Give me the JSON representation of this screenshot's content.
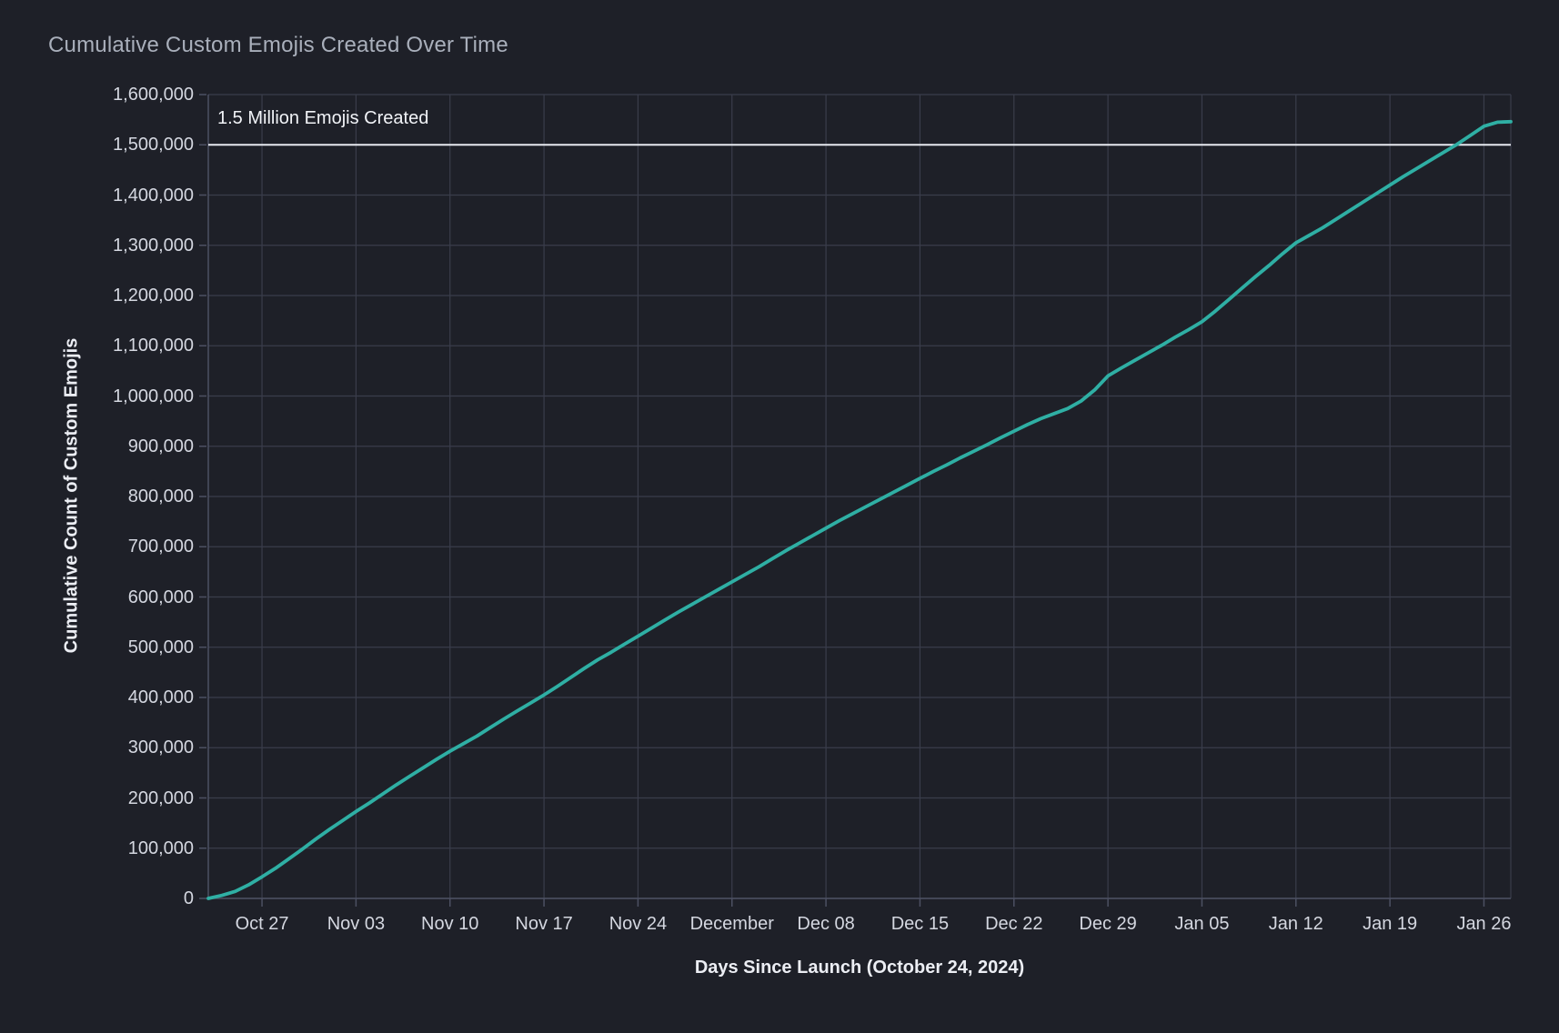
{
  "colors": {
    "background": "#1e2028",
    "grid": "#3a3d4b",
    "axis": "#4c5062",
    "line": "#2fafa4",
    "reference_line": "#e7e9ef",
    "title_text": "#a9afbb",
    "tick_text": "#d4d7e0",
    "axis_title_text": "#eceef4",
    "annotation_text": "#f1f3f7"
  },
  "chart_data": {
    "type": "line",
    "title": "Cumulative Custom Emojis Created Over Time",
    "xlabel": "Days Since Launch (October 24, 2024)",
    "ylabel": "Cumulative Count of Custom Emojis",
    "ylim": [
      0,
      1600000
    ],
    "grid": true,
    "legend": "none",
    "y_ticks": [
      {
        "value": 0,
        "label": "0"
      },
      {
        "value": 100000,
        "label": "100,000"
      },
      {
        "value": 200000,
        "label": "200,000"
      },
      {
        "value": 300000,
        "label": "300,000"
      },
      {
        "value": 400000,
        "label": "400,000"
      },
      {
        "value": 500000,
        "label": "500,000"
      },
      {
        "value": 600000,
        "label": "600,000"
      },
      {
        "value": 700000,
        "label": "700,000"
      },
      {
        "value": 800000,
        "label": "800,000"
      },
      {
        "value": 900000,
        "label": "900,000"
      },
      {
        "value": 1000000,
        "label": "1,000,000"
      },
      {
        "value": 1100000,
        "label": "1,100,000"
      },
      {
        "value": 1200000,
        "label": "1,200,000"
      },
      {
        "value": 1300000,
        "label": "1,300,000"
      },
      {
        "value": 1400000,
        "label": "1,400,000"
      },
      {
        "value": 1500000,
        "label": "1,500,000"
      },
      {
        "value": 1600000,
        "label": "1,600,000"
      }
    ],
    "x_ticks": [
      {
        "day": 3,
        "label": "Oct 27"
      },
      {
        "day": 10,
        "label": "Nov 03"
      },
      {
        "day": 17,
        "label": "Nov 10"
      },
      {
        "day": 24,
        "label": "Nov 17"
      },
      {
        "day": 31,
        "label": "Nov 24"
      },
      {
        "day": 38,
        "label": "December"
      },
      {
        "day": 45,
        "label": "Dec 08"
      },
      {
        "day": 52,
        "label": "Dec 15"
      },
      {
        "day": 59,
        "label": "Dec 22"
      },
      {
        "day": 66,
        "label": "Dec 29"
      },
      {
        "day": 73,
        "label": "Jan 05"
      },
      {
        "day": 80,
        "label": "Jan 12"
      },
      {
        "day": 87,
        "label": "Jan 19"
      },
      {
        "day": 94,
        "label": "Jan 26"
      }
    ],
    "reference_line": {
      "value": 1500000,
      "label": "1.5 Million Emojis Created"
    },
    "series": [
      {
        "name": "cumulative-custom-emojis",
        "cadence": "daily",
        "first_day_since_launch": -1,
        "values": [
          0,
          6000,
          14000,
          27000,
          43000,
          60000,
          79000,
          98000,
          118000,
          137000,
          155000,
          173000,
          190000,
          208000,
          226000,
          243000,
          260000,
          277000,
          293000,
          308000,
          323000,
          340000,
          357000,
          373000,
          389000,
          405000,
          422000,
          440000,
          458000,
          475000,
          490000,
          506000,
          522000,
          538000,
          554000,
          570000,
          585000,
          600000,
          615000,
          630000,
          645000,
          660000,
          676000,
          692000,
          707000,
          722000,
          737000,
          752000,
          766000,
          780000,
          794000,
          808000,
          822000,
          836000,
          850000,
          863000,
          877000,
          890000,
          903000,
          917000,
          930000,
          943000,
          955000,
          965000,
          975000,
          990000,
          1012000,
          1040000,
          1056000,
          1071000,
          1086000,
          1101000,
          1117000,
          1132000,
          1148000,
          1169000,
          1192000,
          1215000,
          1238000,
          1260000,
          1283000,
          1305000,
          1320000,
          1335000,
          1352000,
          1369000,
          1386000,
          1403000,
          1420000,
          1437000,
          1453000,
          1469000,
          1485000,
          1501000,
          1519000,
          1537000,
          1545000,
          1546000
        ]
      }
    ]
  }
}
